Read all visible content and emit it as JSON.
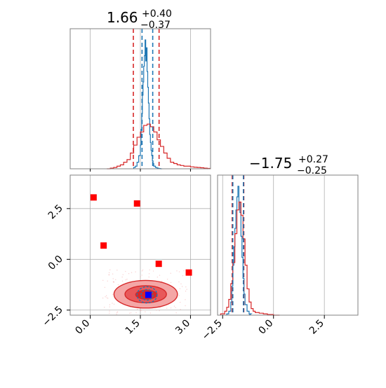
{
  "colors": {
    "primary": "#1f77b4",
    "secondary": "#d62728",
    "marker_red": "#ff0000",
    "marker_blue": "#0000ff",
    "grid": "#b0b0b0",
    "frame": "#808080",
    "contour_fill_1": "#f4a6a6",
    "contour_fill_2": "#e8585a",
    "contour_fill_3": "#d62728"
  },
  "chart_data": [
    {
      "type": "histogram",
      "panel": "top-left",
      "parameter": "param_0",
      "title_value": "1.66",
      "title_upper": "+0.40",
      "title_lower": "−0.37",
      "xlim": [
        -0.6,
        3.6
      ],
      "grid": true,
      "quantile_lines": [
        {
          "color": "secondary",
          "values": [
            1.29,
            2.06
          ]
        },
        {
          "color": "primary",
          "values": [
            1.55,
            1.87
          ]
        }
      ],
      "series": [
        {
          "color": "primary",
          "step": true,
          "x": [
            1.3,
            1.35,
            1.4,
            1.45,
            1.5,
            1.52,
            1.54,
            1.56,
            1.58,
            1.6,
            1.62,
            1.64,
            1.66,
            1.68,
            1.7,
            1.72,
            1.74,
            1.76,
            1.78,
            1.8,
            1.82,
            1.84,
            1.86,
            1.88,
            1.9,
            1.95,
            2.0,
            2.05,
            2.1
          ],
          "values": [
            0.01,
            0.02,
            0.05,
            0.1,
            0.18,
            0.3,
            0.42,
            0.56,
            0.66,
            0.78,
            0.86,
            0.98,
            0.82,
            0.92,
            0.74,
            0.62,
            0.5,
            0.38,
            0.26,
            0.2,
            0.14,
            0.1,
            0.06,
            0.04,
            0.02,
            0.01,
            0.005,
            0.002,
            0.0
          ]
        },
        {
          "color": "secondary",
          "step": true,
          "x": [
            0.5,
            0.6,
            0.7,
            0.8,
            0.9,
            1.0,
            1.1,
            1.2,
            1.3,
            1.4,
            1.5,
            1.6,
            1.7,
            1.8,
            1.9,
            2.0,
            2.1,
            2.2,
            2.3,
            2.4,
            2.5,
            2.6,
            2.7,
            2.8,
            2.9,
            3.0,
            3.1,
            3.2,
            3.3,
            3.4,
            3.5
          ],
          "values": [
            0.0,
            0.005,
            0.01,
            0.02,
            0.03,
            0.05,
            0.07,
            0.12,
            0.18,
            0.24,
            0.28,
            0.33,
            0.34,
            0.32,
            0.28,
            0.22,
            0.17,
            0.12,
            0.08,
            0.05,
            0.04,
            0.03,
            0.025,
            0.02,
            0.02,
            0.015,
            0.012,
            0.01,
            0.008,
            0.005,
            0.003
          ]
        }
      ]
    },
    {
      "type": "scatter-contour",
      "panel": "bottom-left",
      "xlim": [
        -0.6,
        3.6
      ],
      "ylim": [
        -2.75,
        4.15
      ],
      "grid": true,
      "x_ticks": [
        "0.0",
        "1.5",
        "3.0"
      ],
      "y_ticks": [
        "−2.5",
        "0.0",
        "2.5"
      ],
      "x_tick_values": [
        0.0,
        1.5,
        3.0
      ],
      "y_tick_values": [
        -2.5,
        0.0,
        2.5
      ],
      "red_markers": [
        {
          "x": 0.1,
          "y": 3.05
        },
        {
          "x": 1.4,
          "y": 2.75
        },
        {
          "x": 0.4,
          "y": 0.68
        },
        {
          "x": 2.05,
          "y": -0.22
        },
        {
          "x": 2.95,
          "y": -0.65
        }
      ],
      "blue_marker": {
        "x": 1.74,
        "y": -1.75
      },
      "contours": [
        {
          "color": "secondary",
          "fill": "contour_fill_1",
          "cx": 1.66,
          "cy": -1.72,
          "rx": 0.95,
          "ry": 0.68
        },
        {
          "color": "secondary",
          "fill": "contour_fill_2",
          "cx": 1.66,
          "cy": -1.72,
          "rx": 0.62,
          "ry": 0.42
        },
        {
          "color": "secondary",
          "fill": "contour_fill_3",
          "cx": 1.68,
          "cy": -1.74,
          "rx": 0.32,
          "ry": 0.22
        },
        {
          "color": "primary",
          "fill": "none",
          "cx": 1.7,
          "cy": -1.75,
          "rx": 0.3,
          "ry": 0.4
        },
        {
          "color": "primary",
          "fill": "none",
          "cx": 1.7,
          "cy": -1.75,
          "rx": 0.18,
          "ry": 0.26
        }
      ]
    },
    {
      "type": "histogram",
      "panel": "bottom-right",
      "parameter": "param_1",
      "title_value": "−1.75",
      "title_upper": "+0.27",
      "title_lower": "−0.25",
      "xlim": [
        -2.75,
        4.15
      ],
      "grid": true,
      "x_ticks": [
        "−2.5",
        "0.0",
        "2.5"
      ],
      "x_tick_values": [
        -2.5,
        0.0,
        2.5
      ],
      "quantile_lines": [
        {
          "color": "secondary",
          "values": [
            -2.03,
            -1.46
          ]
        },
        {
          "color": "primary",
          "values": [
            -2.0,
            -1.48
          ]
        }
      ],
      "series": [
        {
          "color": "primary",
          "step": true,
          "x": [
            -2.3,
            -2.2,
            -2.1,
            -2.05,
            -2.0,
            -1.95,
            -1.9,
            -1.85,
            -1.8,
            -1.75,
            -1.7,
            -1.65,
            -1.6,
            -1.55,
            -1.5,
            -1.45,
            -1.4,
            -1.3,
            -1.2
          ],
          "values": [
            0.01,
            0.03,
            0.1,
            0.22,
            0.38,
            0.52,
            0.66,
            0.8,
            0.9,
            0.98,
            0.86,
            0.78,
            0.6,
            0.44,
            0.28,
            0.16,
            0.08,
            0.03,
            0.01
          ]
        },
        {
          "color": "secondary",
          "step": true,
          "x": [
            -2.6,
            -2.4,
            -2.3,
            -2.2,
            -2.1,
            -2.0,
            -1.9,
            -1.8,
            -1.7,
            -1.6,
            -1.5,
            -1.4,
            -1.3,
            -1.2,
            -1.1,
            -1.0,
            -0.9,
            -0.7,
            -0.5,
            -0.3,
            0.0
          ],
          "values": [
            0.01,
            0.03,
            0.06,
            0.12,
            0.24,
            0.4,
            0.62,
            0.8,
            0.86,
            0.76,
            0.58,
            0.38,
            0.2,
            0.1,
            0.05,
            0.03,
            0.02,
            0.015,
            0.01,
            0.005,
            0.0
          ]
        }
      ]
    }
  ]
}
